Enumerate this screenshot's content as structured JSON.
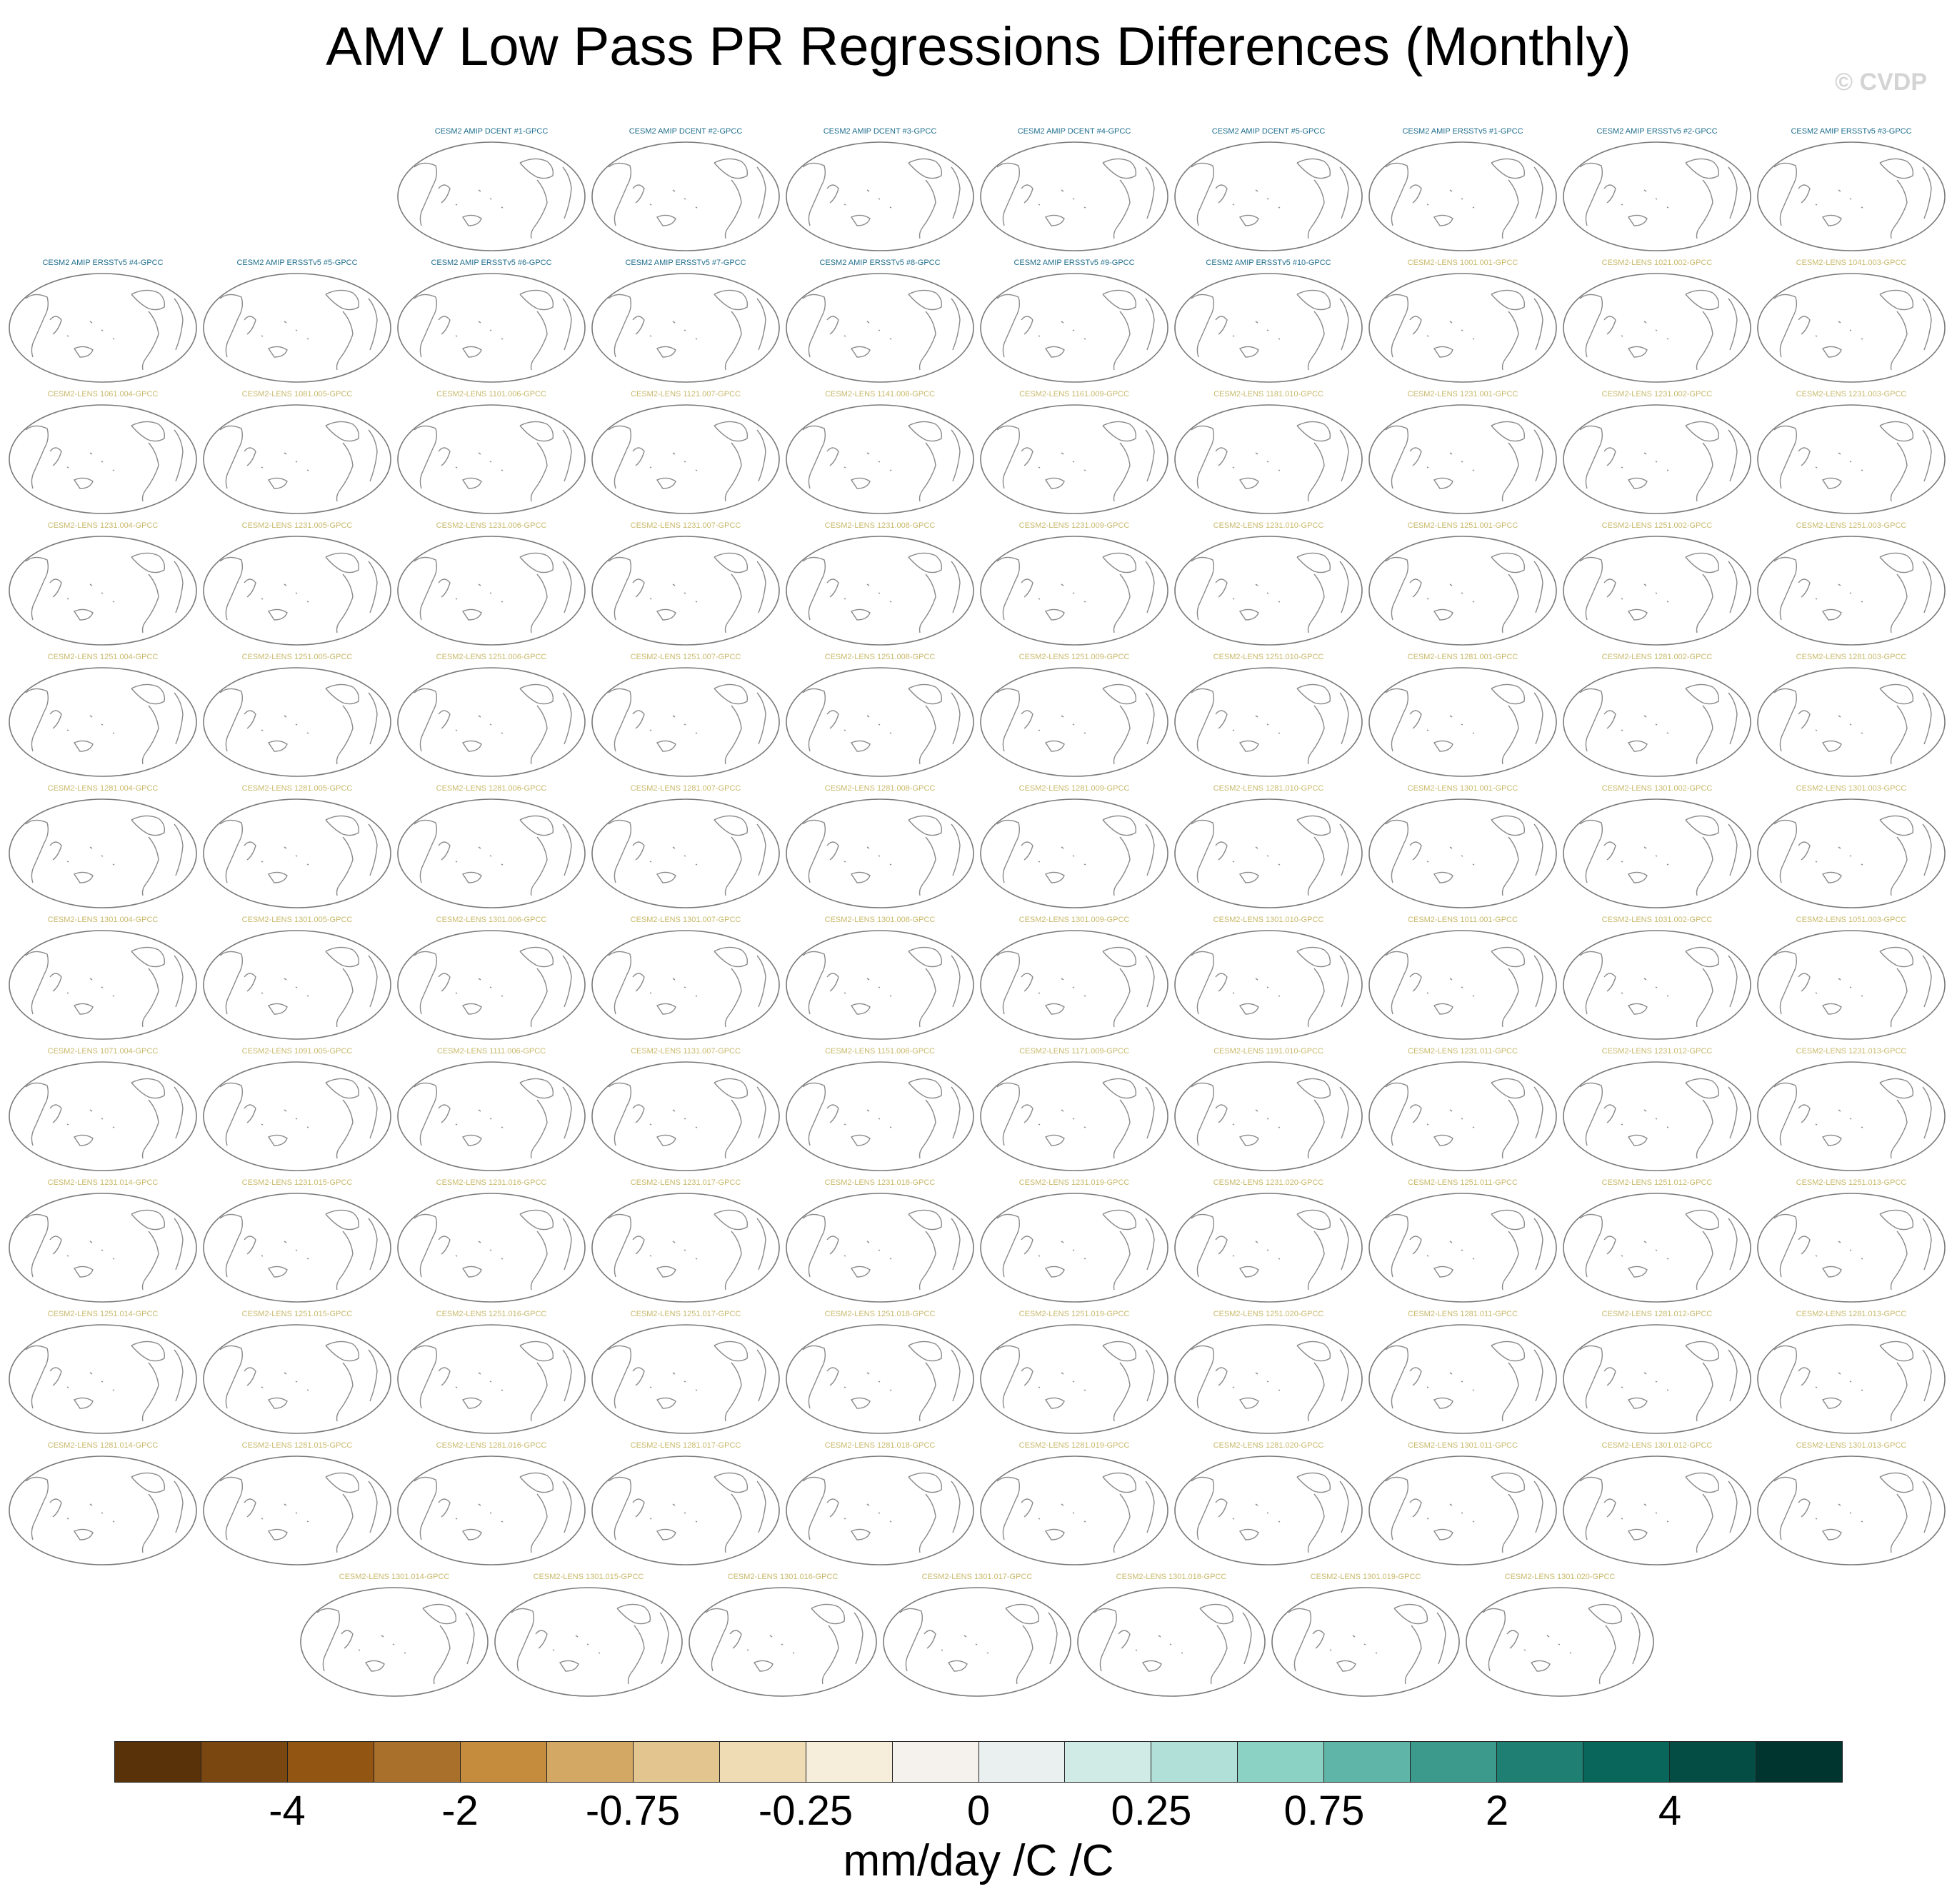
{
  "title": "AMV Low Pass PR Regressions Differences (Monthly)",
  "credit": "© CVDP",
  "panel_title_colors": {
    "amip": "#1f6e8c",
    "lens": "#c8b96a"
  },
  "panel_rows": [
    [
      {
        "label": "CESM2 AMIP DCENT #1-GPCC",
        "group": "amip"
      },
      {
        "label": "CESM2 AMIP DCENT #2-GPCC",
        "group": "amip"
      },
      {
        "label": "CESM2 AMIP DCENT #3-GPCC",
        "group": "amip"
      },
      {
        "label": "CESM2 AMIP DCENT #4-GPCC",
        "group": "amip"
      },
      {
        "label": "CESM2 AMIP DCENT #5-GPCC",
        "group": "amip"
      },
      {
        "label": "CESM2 AMIP ERSSTv5 #1-GPCC",
        "group": "amip"
      },
      {
        "label": "CESM2 AMIP ERSSTv5 #2-GPCC",
        "group": "amip"
      },
      {
        "label": "CESM2 AMIP ERSSTv5 #3-GPCC",
        "group": "amip"
      }
    ],
    [
      {
        "label": "CESM2 AMIP ERSSTv5 #4-GPCC",
        "group": "amip"
      },
      {
        "label": "CESM2 AMIP ERSSTv5 #5-GPCC",
        "group": "amip"
      },
      {
        "label": "CESM2 AMIP ERSSTv5 #6-GPCC",
        "group": "amip"
      },
      {
        "label": "CESM2 AMIP ERSSTv5 #7-GPCC",
        "group": "amip"
      },
      {
        "label": "CESM2 AMIP ERSSTv5 #8-GPCC",
        "group": "amip"
      },
      {
        "label": "CESM2 AMIP ERSSTv5 #9-GPCC",
        "group": "amip"
      },
      {
        "label": "CESM2 AMIP ERSSTv5 #10-GPCC",
        "group": "amip"
      },
      {
        "label": "CESM2-LENS 1001.001-GPCC",
        "group": "lens"
      },
      {
        "label": "CESM2-LENS 1021.002-GPCC",
        "group": "lens"
      },
      {
        "label": "CESM2-LENS 1041.003-GPCC",
        "group": "lens"
      }
    ],
    [
      {
        "label": "CESM2-LENS 1061.004-GPCC",
        "group": "lens"
      },
      {
        "label": "CESM2-LENS 1081.005-GPCC",
        "group": "lens"
      },
      {
        "label": "CESM2-LENS 1101.006-GPCC",
        "group": "lens"
      },
      {
        "label": "CESM2-LENS 1121.007-GPCC",
        "group": "lens"
      },
      {
        "label": "CESM2-LENS 1141.008-GPCC",
        "group": "lens"
      },
      {
        "label": "CESM2-LENS 1161.009-GPCC",
        "group": "lens"
      },
      {
        "label": "CESM2-LENS 1181.010-GPCC",
        "group": "lens"
      },
      {
        "label": "CESM2-LENS 1231.001-GPCC",
        "group": "lens"
      },
      {
        "label": "CESM2-LENS 1231.002-GPCC",
        "group": "lens"
      },
      {
        "label": "CESM2-LENS 1231.003-GPCC",
        "group": "lens"
      }
    ],
    [
      {
        "label": "CESM2-LENS 1231.004-GPCC",
        "group": "lens"
      },
      {
        "label": "CESM2-LENS 1231.005-GPCC",
        "group": "lens"
      },
      {
        "label": "CESM2-LENS 1231.006-GPCC",
        "group": "lens"
      },
      {
        "label": "CESM2-LENS 1231.007-GPCC",
        "group": "lens"
      },
      {
        "label": "CESM2-LENS 1231.008-GPCC",
        "group": "lens"
      },
      {
        "label": "CESM2-LENS 1231.009-GPCC",
        "group": "lens"
      },
      {
        "label": "CESM2-LENS 1231.010-GPCC",
        "group": "lens"
      },
      {
        "label": "CESM2-LENS 1251.001-GPCC",
        "group": "lens"
      },
      {
        "label": "CESM2-LENS 1251.002-GPCC",
        "group": "lens"
      },
      {
        "label": "CESM2-LENS 1251.003-GPCC",
        "group": "lens"
      }
    ],
    [
      {
        "label": "CESM2-LENS 1251.004-GPCC",
        "group": "lens"
      },
      {
        "label": "CESM2-LENS 1251.005-GPCC",
        "group": "lens"
      },
      {
        "label": "CESM2-LENS 1251.006-GPCC",
        "group": "lens"
      },
      {
        "label": "CESM2-LENS 1251.007-GPCC",
        "group": "lens"
      },
      {
        "label": "CESM2-LENS 1251.008-GPCC",
        "group": "lens"
      },
      {
        "label": "CESM2-LENS 1251.009-GPCC",
        "group": "lens"
      },
      {
        "label": "CESM2-LENS 1251.010-GPCC",
        "group": "lens"
      },
      {
        "label": "CESM2-LENS 1281.001-GPCC",
        "group": "lens"
      },
      {
        "label": "CESM2-LENS 1281.002-GPCC",
        "group": "lens"
      },
      {
        "label": "CESM2-LENS 1281.003-GPCC",
        "group": "lens"
      }
    ],
    [
      {
        "label": "CESM2-LENS 1281.004-GPCC",
        "group": "lens"
      },
      {
        "label": "CESM2-LENS 1281.005-GPCC",
        "group": "lens"
      },
      {
        "label": "CESM2-LENS 1281.006-GPCC",
        "group": "lens"
      },
      {
        "label": "CESM2-LENS 1281.007-GPCC",
        "group": "lens"
      },
      {
        "label": "CESM2-LENS 1281.008-GPCC",
        "group": "lens"
      },
      {
        "label": "CESM2-LENS 1281.009-GPCC",
        "group": "lens"
      },
      {
        "label": "CESM2-LENS 1281.010-GPCC",
        "group": "lens"
      },
      {
        "label": "CESM2-LENS 1301.001-GPCC",
        "group": "lens"
      },
      {
        "label": "CESM2-LENS 1301.002-GPCC",
        "group": "lens"
      },
      {
        "label": "CESM2-LENS 1301.003-GPCC",
        "group": "lens"
      }
    ],
    [
      {
        "label": "CESM2-LENS 1301.004-GPCC",
        "group": "lens"
      },
      {
        "label": "CESM2-LENS 1301.005-GPCC",
        "group": "lens"
      },
      {
        "label": "CESM2-LENS 1301.006-GPCC",
        "group": "lens"
      },
      {
        "label": "CESM2-LENS 1301.007-GPCC",
        "group": "lens"
      },
      {
        "label": "CESM2-LENS 1301.008-GPCC",
        "group": "lens"
      },
      {
        "label": "CESM2-LENS 1301.009-GPCC",
        "group": "lens"
      },
      {
        "label": "CESM2-LENS 1301.010-GPCC",
        "group": "lens"
      },
      {
        "label": "CESM2-LENS 1011.001-GPCC",
        "group": "lens"
      },
      {
        "label": "CESM2-LENS 1031.002-GPCC",
        "group": "lens"
      },
      {
        "label": "CESM2-LENS 1051.003-GPCC",
        "group": "lens"
      }
    ],
    [
      {
        "label": "CESM2-LENS 1071.004-GPCC",
        "group": "lens"
      },
      {
        "label": "CESM2-LENS 1091.005-GPCC",
        "group": "lens"
      },
      {
        "label": "CESM2-LENS 1111.006-GPCC",
        "group": "lens"
      },
      {
        "label": "CESM2-LENS 1131.007-GPCC",
        "group": "lens"
      },
      {
        "label": "CESM2-LENS 1151.008-GPCC",
        "group": "lens"
      },
      {
        "label": "CESM2-LENS 1171.009-GPCC",
        "group": "lens"
      },
      {
        "label": "CESM2-LENS 1191.010-GPCC",
        "group": "lens"
      },
      {
        "label": "CESM2-LENS 1231.011-GPCC",
        "group": "lens"
      },
      {
        "label": "CESM2-LENS 1231.012-GPCC",
        "group": "lens"
      },
      {
        "label": "CESM2-LENS 1231.013-GPCC",
        "group": "lens"
      }
    ],
    [
      {
        "label": "CESM2-LENS 1231.014-GPCC",
        "group": "lens"
      },
      {
        "label": "CESM2-LENS 1231.015-GPCC",
        "group": "lens"
      },
      {
        "label": "CESM2-LENS 1231.016-GPCC",
        "group": "lens"
      },
      {
        "label": "CESM2-LENS 1231.017-GPCC",
        "group": "lens"
      },
      {
        "label": "CESM2-LENS 1231.018-GPCC",
        "group": "lens"
      },
      {
        "label": "CESM2-LENS 1231.019-GPCC",
        "group": "lens"
      },
      {
        "label": "CESM2-LENS 1231.020-GPCC",
        "group": "lens"
      },
      {
        "label": "CESM2-LENS 1251.011-GPCC",
        "group": "lens"
      },
      {
        "label": "CESM2-LENS 1251.012-GPCC",
        "group": "lens"
      },
      {
        "label": "CESM2-LENS 1251.013-GPCC",
        "group": "lens"
      }
    ],
    [
      {
        "label": "CESM2-LENS 1251.014-GPCC",
        "group": "lens"
      },
      {
        "label": "CESM2-LENS 1251.015-GPCC",
        "group": "lens"
      },
      {
        "label": "CESM2-LENS 1251.016-GPCC",
        "group": "lens"
      },
      {
        "label": "CESM2-LENS 1251.017-GPCC",
        "group": "lens"
      },
      {
        "label": "CESM2-LENS 1251.018-GPCC",
        "group": "lens"
      },
      {
        "label": "CESM2-LENS 1251.019-GPCC",
        "group": "lens"
      },
      {
        "label": "CESM2-LENS 1251.020-GPCC",
        "group": "lens"
      },
      {
        "label": "CESM2-LENS 1281.011-GPCC",
        "group": "lens"
      },
      {
        "label": "CESM2-LENS 1281.012-GPCC",
        "group": "lens"
      },
      {
        "label": "CESM2-LENS 1281.013-GPCC",
        "group": "lens"
      }
    ],
    [
      {
        "label": "CESM2-LENS 1281.014-GPCC",
        "group": "lens"
      },
      {
        "label": "CESM2-LENS 1281.015-GPCC",
        "group": "lens"
      },
      {
        "label": "CESM2-LENS 1281.016-GPCC",
        "group": "lens"
      },
      {
        "label": "CESM2-LENS 1281.017-GPCC",
        "group": "lens"
      },
      {
        "label": "CESM2-LENS 1281.018-GPCC",
        "group": "lens"
      },
      {
        "label": "CESM2-LENS 1281.019-GPCC",
        "group": "lens"
      },
      {
        "label": "CESM2-LENS 1281.020-GPCC",
        "group": "lens"
      },
      {
        "label": "CESM2-LENS 1301.011-GPCC",
        "group": "lens"
      },
      {
        "label": "CESM2-LENS 1301.012-GPCC",
        "group": "lens"
      },
      {
        "label": "CESM2-LENS 1301.013-GPCC",
        "group": "lens"
      }
    ],
    [
      {
        "label": "CESM2-LENS 1301.014-GPCC",
        "group": "lens"
      },
      {
        "label": "CESM2-LENS 1301.015-GPCC",
        "group": "lens"
      },
      {
        "label": "CESM2-LENS 1301.016-GPCC",
        "group": "lens"
      },
      {
        "label": "CESM2-LENS 1301.017-GPCC",
        "group": "lens"
      },
      {
        "label": "CESM2-LENS 1301.018-GPCC",
        "group": "lens"
      },
      {
        "label": "CESM2-LENS 1301.019-GPCC",
        "group": "lens"
      },
      {
        "label": "CESM2-LENS 1301.020-GPCC",
        "group": "lens"
      }
    ]
  ],
  "colorbar": {
    "colors": [
      "#5a3209",
      "#7a4710",
      "#925512",
      "#a8702a",
      "#c48c3c",
      "#d3a865",
      "#e3c68f",
      "#efdcb4",
      "#f6eedb",
      "#f5f1ec",
      "#e9f0ef",
      "#d0ebe6",
      "#b0e0d8",
      "#8bd1c4",
      "#5fb5a7",
      "#3c9a8c",
      "#1f7f72",
      "#08665b",
      "#044d44",
      "#00352f"
    ],
    "tick_labels": [
      "-4",
      "-2",
      "-0.75",
      "-0.25",
      "0",
      "0.25",
      "0.75",
      "2",
      "4"
    ],
    "units": "mm/day /C /C"
  }
}
